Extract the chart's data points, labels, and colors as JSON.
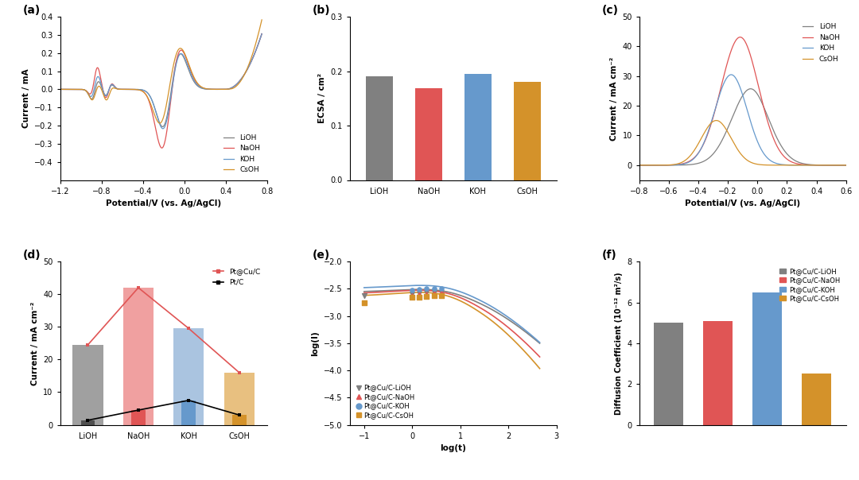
{
  "colors": {
    "LiOH": "#808080",
    "NaOH": "#e05555",
    "KOH": "#6699cc",
    "CsOH": "#d4922a"
  },
  "colors_light": {
    "LiOH": "#a0a0a0",
    "NaOH": "#f0a0a0",
    "KOH": "#aac4e0",
    "CsOH": "#e8c080"
  },
  "panel_a": {
    "title": "(a)",
    "xlabel": "Potential/V (vs. Ag/AgCl)",
    "ylabel": "Current / mA",
    "xlim": [
      -1.2,
      0.8
    ],
    "ylim": [
      -0.5,
      0.4
    ],
    "yticks": [
      -0.4,
      -0.3,
      -0.2,
      -0.1,
      0.0,
      0.1,
      0.2,
      0.3,
      0.4
    ],
    "xticks": [
      -1.2,
      -0.8,
      -0.4,
      0.0,
      0.4,
      0.8
    ]
  },
  "panel_b": {
    "title": "(b)",
    "ylabel": "ECSA / cm²",
    "xlim_labels": [
      "LiOH",
      "NaOH",
      "KOH",
      "CsOH"
    ],
    "values": [
      0.191,
      0.168,
      0.195,
      0.181
    ],
    "bar_colors": [
      "#808080",
      "#e05555",
      "#6699cc",
      "#d4922a"
    ],
    "ylim": [
      0.0,
      0.3
    ],
    "yticks": [
      0.0,
      0.1,
      0.2,
      0.3
    ]
  },
  "panel_c": {
    "title": "(c)",
    "xlabel": "Potential/V (vs. Ag/AgCl)",
    "ylabel": "Current / mA cm⁻²",
    "xlim": [
      -0.8,
      0.6
    ],
    "ylim": [
      -5,
      50
    ],
    "yticks": [
      0,
      10,
      20,
      30,
      40,
      50
    ],
    "xticks": [
      -0.8,
      -0.6,
      -0.4,
      -0.2,
      0.0,
      0.2,
      0.4,
      0.6
    ]
  },
  "panel_d": {
    "title": "(d)",
    "ylabel": "Current / mA cm⁻²",
    "xlim_labels": [
      "LiOH",
      "NaOH",
      "KOH",
      "CsOH"
    ],
    "PtCuC_values": [
      24.5,
      42.0,
      29.5,
      16.0
    ],
    "PtC_values": [
      1.4,
      4.5,
      7.5,
      3.0
    ],
    "bar_colors_light": [
      "#a0a0a0",
      "#f0a0a0",
      "#aac4e0",
      "#e8c080"
    ],
    "bar_colors_dark": [
      "#505050",
      "#e05555",
      "#6699cc",
      "#d4922a"
    ],
    "ylim": [
      0,
      50
    ],
    "yticks": [
      0,
      10,
      20,
      30,
      40,
      50
    ]
  },
  "panel_e": {
    "title": "(e)",
    "xlabel": "log(t)",
    "ylabel": "log(I)",
    "xlim": [
      -1.3,
      3.0
    ],
    "ylim": [
      -5.0,
      -2.0
    ],
    "yticks": [
      -5.0,
      -4.5,
      -4.0,
      -3.5,
      -3.0,
      -2.5,
      -2.0
    ],
    "xticks": [
      -1,
      0,
      1,
      2,
      3
    ]
  },
  "panel_f": {
    "title": "(f)",
    "ylabel": "Diffusion Coefficient (10⁻¹² m²/s)",
    "xlim_labels": [
      "Pt@Cu/C-LiOH",
      "Pt@Cu/C-NaOH",
      "Pt@Cu/C-KOH",
      "Pt@Cu/C-CsOH"
    ],
    "values": [
      5.0,
      5.1,
      6.5,
      2.5
    ],
    "bar_colors": [
      "#808080",
      "#e05555",
      "#6699cc",
      "#d4922a"
    ],
    "ylim": [
      0,
      8
    ],
    "yticks": [
      0,
      2,
      4,
      6,
      8
    ]
  }
}
